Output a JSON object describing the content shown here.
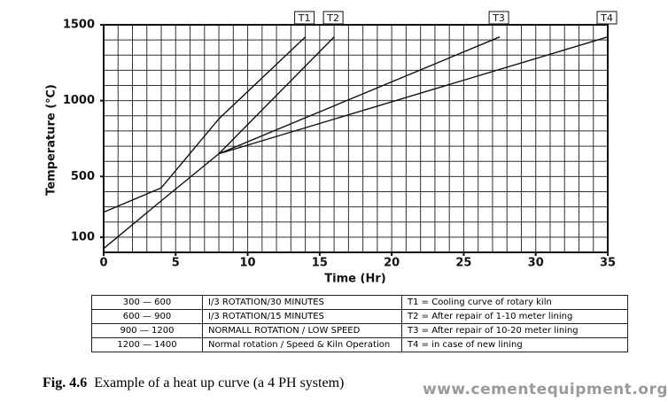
{
  "chart_data": {
    "type": "line",
    "xlabel": "Time (Hr)",
    "ylabel": "Temperature (℃)",
    "xlim": [
      0,
      35
    ],
    "ylim": [
      0,
      1500
    ],
    "xticks": [
      0,
      5,
      10,
      15,
      20,
      25,
      30,
      35
    ],
    "yticks": [
      100,
      500,
      1000,
      1500
    ],
    "x_minor_ticks": [
      0,
      1,
      2,
      3,
      4,
      5,
      6,
      7,
      8,
      9,
      10,
      11,
      12,
      13,
      14,
      15,
      16,
      17,
      18,
      19,
      20,
      21,
      22,
      23,
      24,
      25,
      26,
      27,
      28,
      29,
      30,
      31,
      32,
      33,
      34,
      35
    ],
    "y_minor_ticks": [
      0,
      100,
      200,
      300,
      400,
      500,
      600,
      700,
      800,
      900,
      1000,
      1100,
      1200,
      1300,
      1400,
      1500
    ],
    "grid": true,
    "series": [
      {
        "name": "T1",
        "color": "#111111",
        "x": [
          0,
          4,
          8,
          14
        ],
        "values": [
          265,
          425,
          880,
          1420
        ]
      },
      {
        "name": "T2",
        "color": "#111111",
        "x": [
          0,
          4,
          8,
          16
        ],
        "values": [
          25,
          340,
          650,
          1420
        ]
      },
      {
        "name": "T3",
        "color": "#111111",
        "x": [
          8,
          27.5
        ],
        "values": [
          650,
          1420
        ]
      },
      {
        "name": "T4",
        "color": "#111111",
        "x": [
          8,
          35
        ],
        "values": [
          650,
          1420
        ]
      }
    ]
  },
  "table": {
    "rows": [
      [
        "300 — 600",
        "I/3 ROTATION/30 MINUTES",
        "T1 = Cooling curve of rotary kiln"
      ],
      [
        "600 — 900",
        "I/3 ROTATION/15 MINUTES",
        "T2 = After repair of 1-10 meter lining"
      ],
      [
        "900 — 1200",
        "NORMALL ROTATION / LOW SPEED",
        "T3 = After repair of 10-20 meter lining"
      ],
      [
        "1200 — 1400",
        "Normal rotation / Speed & Kiln Operation",
        "T4 = in case of new lining"
      ]
    ]
  },
  "caption": {
    "label": "Fig. 4.6",
    "text": "Example of a heat up curve (a 4 PH system)"
  },
  "watermark": "www.cementequipment.org"
}
